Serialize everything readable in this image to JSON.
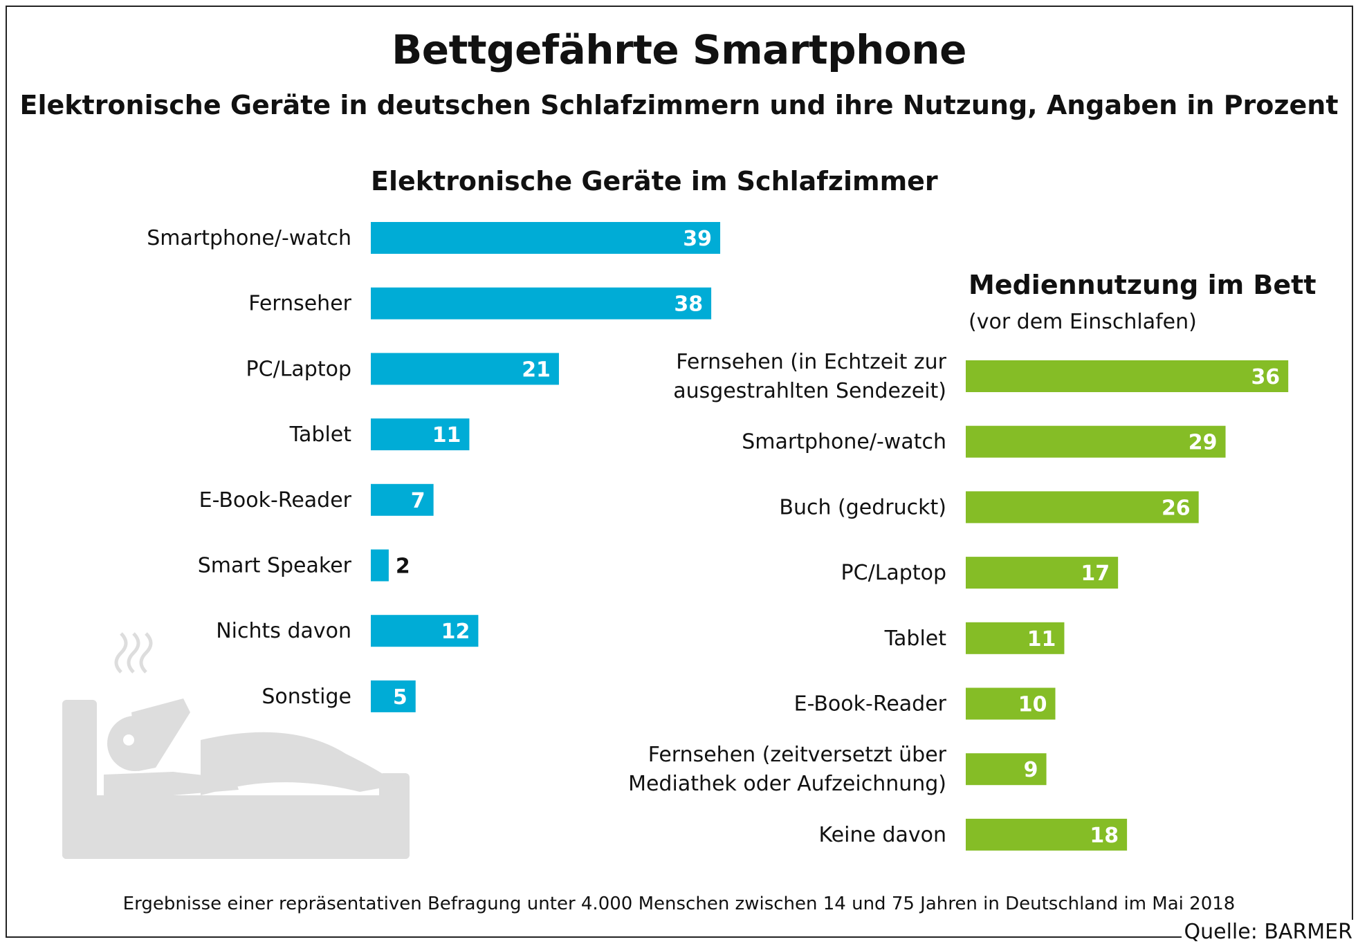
{
  "title": "Bettgefährte Smartphone",
  "subtitle": "Elektronische Geräte in deutschen Schlafzimmern und ihre Nutzung, Angaben in Prozent",
  "footnote": "Ergebnisse einer repräsentativen Befragung unter 4.000 Menschen zwischen 14 und 75 Jahren in Deutschland im Mai 2018",
  "source": "Quelle: BARMER",
  "colors": {
    "blue": "#00acd6",
    "green": "#85bd26",
    "icon": "#dddddd"
  },
  "chart_data": [
    {
      "type": "bar",
      "orientation": "horizontal",
      "title": "Elektronische Geräte im Schlafzimmer",
      "categories": [
        "Smartphone/-watch",
        "Fernseher",
        "PC/Laptop",
        "Tablet",
        "E-Book-Reader",
        "Smart Speaker",
        "Nichts davon",
        "Sonstige"
      ],
      "values": [
        39,
        38,
        21,
        11,
        7,
        2,
        12,
        5
      ],
      "unit": "Prozent"
    },
    {
      "type": "bar",
      "orientation": "horizontal",
      "title": "Mediennutzung im Bett",
      "subtitle": "(vor dem Einschlafen)",
      "categories": [
        [
          "Fernsehen (in Echtzeit zur",
          "ausgestrahlten Sendezeit)"
        ],
        [
          "Smartphone/-watch"
        ],
        [
          "Buch (gedruckt)"
        ],
        [
          "PC/Laptop"
        ],
        [
          "Tablet"
        ],
        [
          "E-Book-Reader"
        ],
        [
          "Fernsehen (zeitversetzt über",
          "Mediathek oder Aufzeichnung)"
        ],
        [
          "Keine davon"
        ]
      ],
      "values": [
        36,
        29,
        26,
        17,
        11,
        10,
        9,
        18
      ],
      "unit": "Prozent"
    }
  ]
}
